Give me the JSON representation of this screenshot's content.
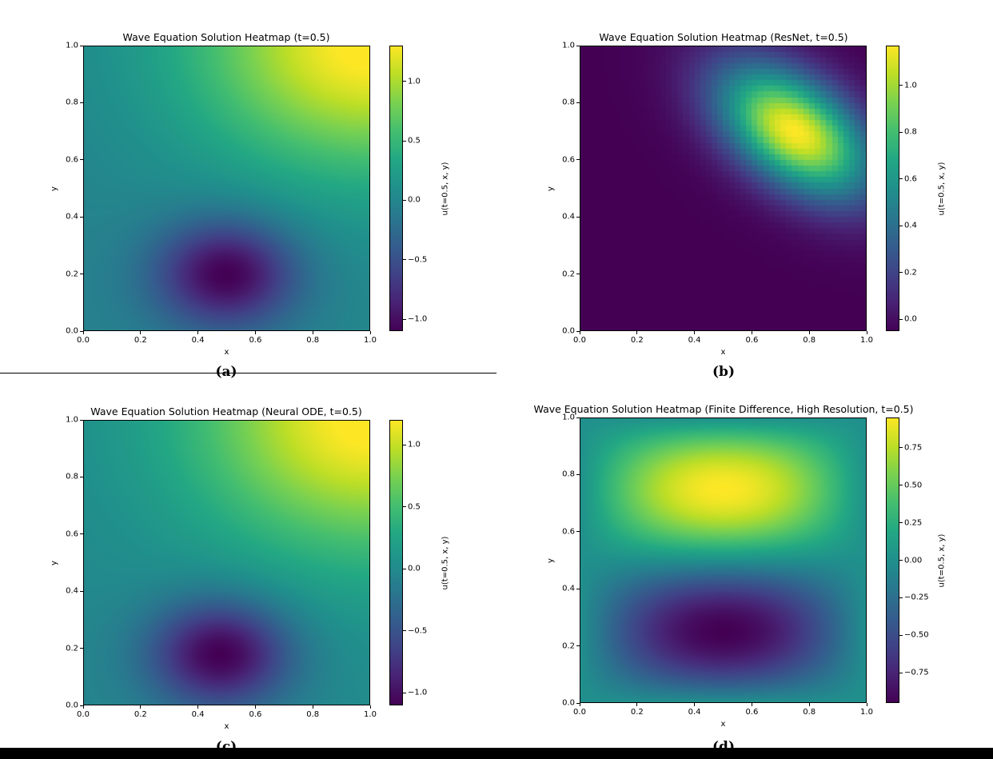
{
  "figure": {
    "subfigure_labels": [
      "(a)",
      "(b)",
      "(c)",
      "(d)"
    ]
  },
  "chart_data": [
    {
      "type": "heatmap",
      "title": "Wave Equation Solution Heatmap (t=0.5)",
      "xlabel": "x",
      "ylabel": "y",
      "colorbar_label": "u(t=0.5, x, y)",
      "colormap": "viridis",
      "xlim": [
        0.0,
        1.0
      ],
      "ylim": [
        0.0,
        1.0
      ],
      "xticks": [
        "0.0",
        "0.2",
        "0.4",
        "0.6",
        "0.8",
        "1.0"
      ],
      "yticks": [
        "0.0",
        "0.2",
        "0.4",
        "0.6",
        "0.8",
        "1.0"
      ],
      "clim": [
        -1.1,
        1.3
      ],
      "cticks": [
        "−1.0",
        "−0.5",
        "0.0",
        "0.5",
        "1.0"
      ],
      "pattern": {
        "positive_peak": [
          1.0,
          1.0
        ],
        "positive_value": 1.3,
        "negative_peak": [
          0.5,
          0.2
        ],
        "negative_value": -1.1
      }
    },
    {
      "type": "heatmap",
      "title": "Wave Equation Solution Heatmap (ResNet, t=0.5)",
      "xlabel": "x",
      "ylabel": "y",
      "colorbar_label": "u(t=0.5, x, y)",
      "colormap": "viridis",
      "xlim": [
        0.0,
        1.0
      ],
      "ylim": [
        0.0,
        1.0
      ],
      "xticks": [
        "0.0",
        "0.2",
        "0.4",
        "0.6",
        "0.8",
        "1.0"
      ],
      "yticks": [
        "0.0",
        "0.2",
        "0.4",
        "0.6",
        "0.8",
        "1.0"
      ],
      "clim": [
        -0.05,
        1.17
      ],
      "cticks": [
        "0.0",
        "0.2",
        "0.4",
        "0.6",
        "0.8",
        "1.0"
      ],
      "pattern": {
        "positive_peak": [
          0.75,
          0.7
        ],
        "positive_value": 1.17,
        "min_value": -0.05,
        "pixelated": true
      }
    },
    {
      "type": "heatmap",
      "title": "Wave Equation Solution Heatmap (Neural ODE, t=0.5)",
      "xlabel": "x",
      "ylabel": "y",
      "colorbar_label": "u(t=0.5, x, y)",
      "colormap": "viridis",
      "xlim": [
        0.0,
        1.0
      ],
      "ylim": [
        0.0,
        1.0
      ],
      "xticks": [
        "0.0",
        "0.2",
        "0.4",
        "0.6",
        "0.8",
        "1.0"
      ],
      "yticks": [
        "0.0",
        "0.2",
        "0.4",
        "0.6",
        "0.8",
        "1.0"
      ],
      "clim": [
        -1.1,
        1.2
      ],
      "cticks": [
        "−1.0",
        "−0.5",
        "0.0",
        "0.5",
        "1.0"
      ],
      "pattern": {
        "positive_peak": [
          1.0,
          1.0
        ],
        "positive_value": 1.2,
        "negative_peak": [
          0.48,
          0.18
        ],
        "negative_value": -1.1
      }
    },
    {
      "type": "heatmap",
      "title": "Wave Equation Solution Heatmap (Finite Difference, High Resolution, t=0.5)",
      "xlabel": "x",
      "ylabel": "y",
      "colorbar_label": "u(t=0.5, x, y)",
      "colormap": "viridis",
      "xlim": [
        0.0,
        1.0
      ],
      "ylim": [
        0.0,
        1.0
      ],
      "xticks": [
        "0.0",
        "0.2",
        "0.4",
        "0.6",
        "0.8",
        "1.0"
      ],
      "yticks": [
        "0.0",
        "0.2",
        "0.4",
        "0.6",
        "0.8",
        "1.0"
      ],
      "clim": [
        -0.95,
        0.95
      ],
      "cticks": [
        "0.75",
        "0.50",
        "0.25",
        "0.00",
        "−0.25",
        "−0.50",
        "−0.75"
      ],
      "pattern": {
        "positive_peak": [
          0.5,
          0.75
        ],
        "positive_value": 0.95,
        "negative_peak": [
          0.5,
          0.25
        ],
        "negative_value": -0.95
      }
    }
  ]
}
